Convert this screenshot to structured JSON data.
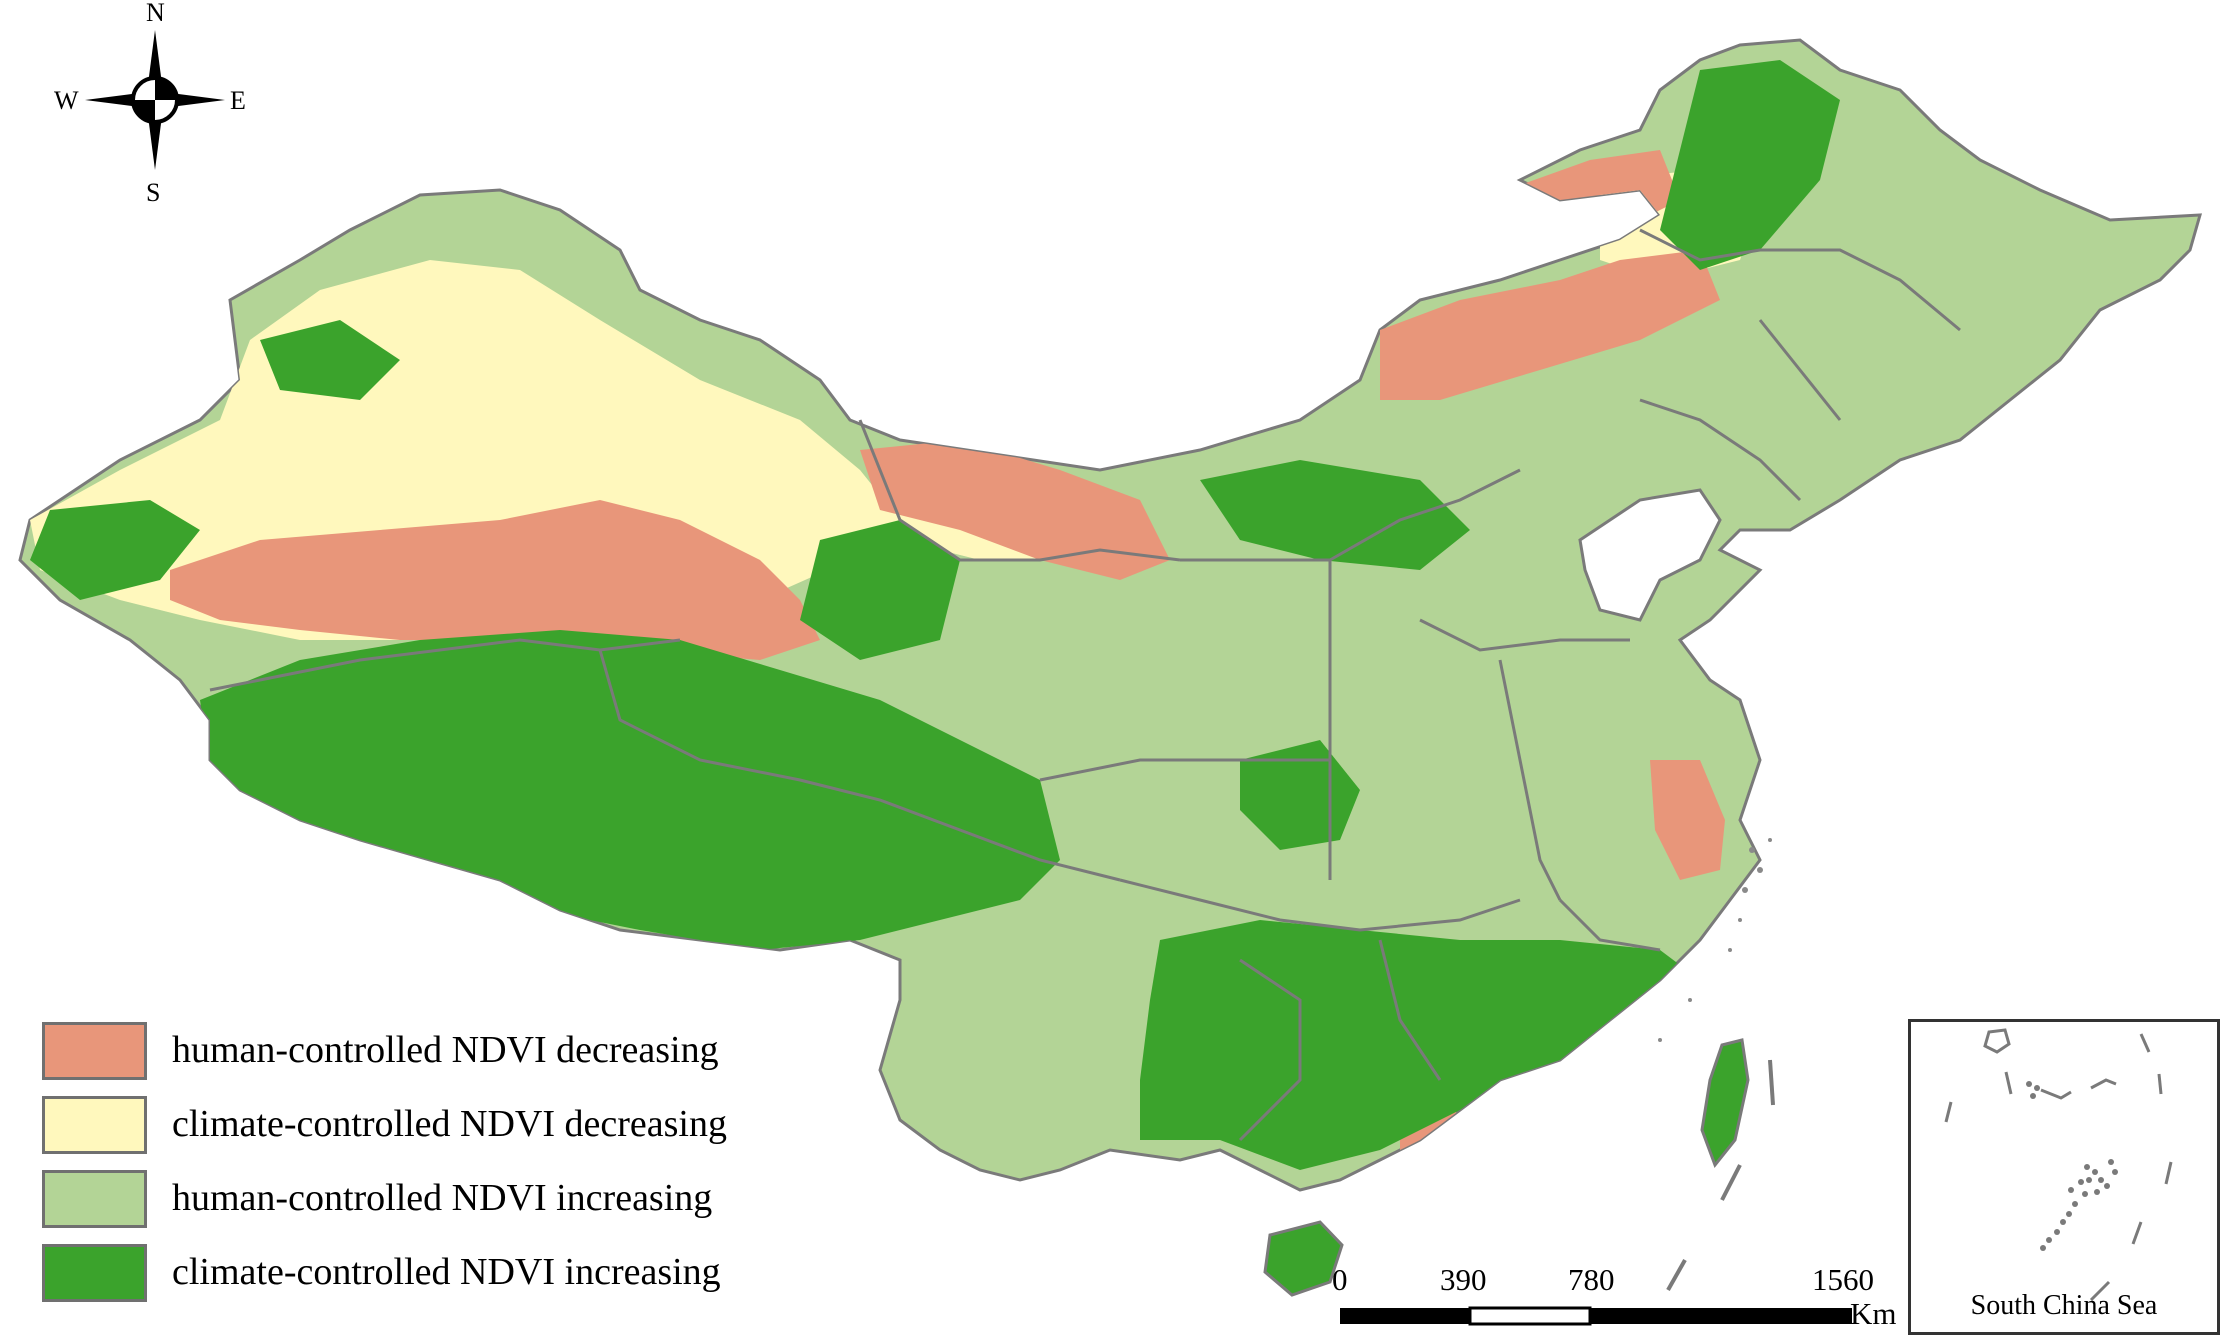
{
  "compass": {
    "north": "N",
    "south": "S",
    "east": "E",
    "west": "W"
  },
  "colors": {
    "human_decreasing": "#e8967a",
    "climate_decreasing": "#fff8bd",
    "human_increasing": "#b3d496",
    "climate_increasing": "#3ba32c",
    "boundary": "#7a7a7a"
  },
  "legend": [
    {
      "label": "human-controlled NDVI decreasing",
      "color": "#e8967a"
    },
    {
      "label": "climate-controlled NDVI decreasing",
      "color": "#fff8bd"
    },
    {
      "label": "human-controlled NDVI increasing",
      "color": "#b3d496"
    },
    {
      "label": "climate-controlled NDVI increasing",
      "color": "#3ba32c"
    }
  ],
  "scale_bar": {
    "ticks": [
      "0",
      "390",
      "780",
      "1560"
    ],
    "unit": "Km"
  },
  "inset": {
    "caption": "South China Sea"
  }
}
